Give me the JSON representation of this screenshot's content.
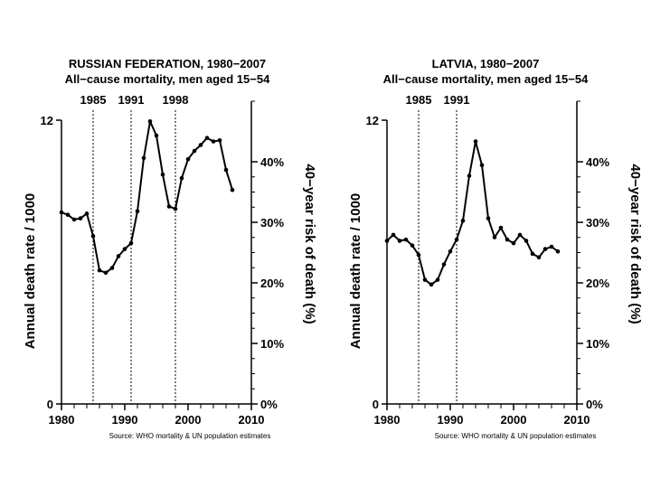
{
  "chart_data": [
    {
      "type": "line",
      "title": "RUSSIAN FEDERATION, 1980−2007",
      "subtitle": "All−cause mortality, men aged 15−54",
      "ylabel": "Annual death rate / 1000",
      "y2label": "40−year risk of death (%)",
      "xlim": [
        1980,
        2010
      ],
      "ylim": [
        0,
        12
      ],
      "x_ticks": [
        "1980",
        "1990",
        "2000",
        "2010"
      ],
      "y_ticks": [
        "0",
        "12"
      ],
      "y2_ticks": [
        "0%",
        "10%",
        "20%",
        "30%",
        "40%"
      ],
      "markers": [
        "1985",
        "1991",
        "1998"
      ],
      "source": "Source: WHO mortality & UN population estimates",
      "x": [
        1980,
        1981,
        1982,
        1983,
        1984,
        1985,
        1986,
        1987,
        1988,
        1989,
        1990,
        1991,
        1992,
        1993,
        1994,
        1995,
        1996,
        1997,
        1998,
        1999,
        2000,
        2001,
        2002,
        2003,
        2004,
        2005,
        2006,
        2007
      ],
      "y": [
        8.1,
        8.0,
        7.8,
        7.85,
        8.05,
        7.1,
        5.65,
        5.55,
        5.75,
        6.25,
        6.55,
        6.8,
        8.15,
        10.4,
        11.95,
        11.35,
        9.7,
        8.35,
        8.25,
        9.55,
        10.35,
        10.7,
        10.95,
        11.25,
        11.1,
        11.15,
        9.9,
        9.05
      ]
    },
    {
      "type": "line",
      "title": "LATVIA, 1980−2007",
      "subtitle": "All−cause mortality, men aged 15−54",
      "ylabel": "Annual death rate / 1000",
      "y2label": "40−year risk of death (%)",
      "xlim": [
        1980,
        2010
      ],
      "ylim": [
        0,
        12
      ],
      "x_ticks": [
        "1980",
        "1990",
        "2000",
        "2010"
      ],
      "y_ticks": [
        "0",
        "12"
      ],
      "y2_ticks": [
        "0%",
        "10%",
        "20%",
        "30%",
        "40%"
      ],
      "markers": [
        "1985",
        "1991"
      ],
      "source": "Source: WHO mortality & UN population estimates",
      "x": [
        1980,
        1981,
        1982,
        1983,
        1984,
        1985,
        1986,
        1987,
        1988,
        1989,
        1990,
        1991,
        1992,
        1993,
        1994,
        1995,
        1996,
        1997,
        1998,
        1999,
        2000,
        2001,
        2002,
        2003,
        2004,
        2005,
        2006,
        2007
      ],
      "y": [
        6.9,
        7.15,
        6.9,
        6.95,
        6.7,
        6.3,
        5.25,
        5.05,
        5.25,
        5.9,
        6.45,
        6.95,
        7.75,
        9.65,
        11.1,
        10.1,
        7.85,
        7.05,
        7.45,
        6.95,
        6.8,
        7.15,
        6.9,
        6.35,
        6.2,
        6.55,
        6.65,
        6.45
      ]
    }
  ]
}
